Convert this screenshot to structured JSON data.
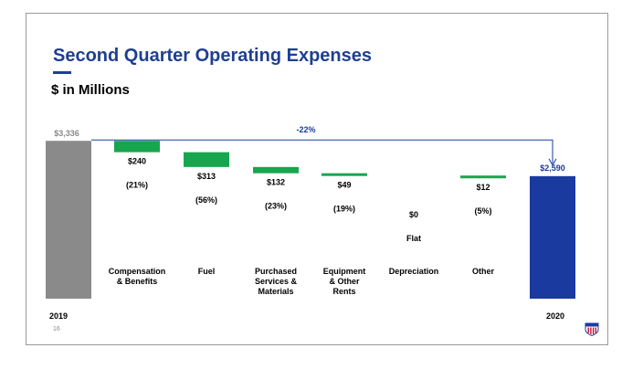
{
  "slide": {
    "title": "Second Quarter Operating Expenses",
    "subtitle": "$ in Millions",
    "page_number": "16"
  },
  "colors": {
    "title": "#1f3f91",
    "start_bar": "#8a8a8a",
    "decrease_bar": "#17a64e",
    "end_bar": "#1a3aa0",
    "connector": "#1a3aa0"
  },
  "chart_data": {
    "type": "bar",
    "subtype": "waterfall",
    "title": "Second Quarter Operating Expenses",
    "ylabel": "$ in Millions",
    "start": {
      "label": "2019",
      "value": 3336,
      "value_label": "$3,336"
    },
    "end": {
      "label": "2020",
      "value": 2590,
      "value_label": "$2,590"
    },
    "change_label": "-22%",
    "steps": [
      {
        "name": "Compensation & Benefits",
        "lines": [
          "Compensation",
          "& Benefits"
        ],
        "delta": -240,
        "value_label": "$240",
        "pct_label": "(21%)"
      },
      {
        "name": "Fuel",
        "lines": [
          "Fuel"
        ],
        "delta": -313,
        "value_label": "$313",
        "pct_label": "(56%)"
      },
      {
        "name": "Purchased Services & Materials",
        "lines": [
          "Purchased",
          "Services &",
          "Materials"
        ],
        "delta": -132,
        "value_label": "$132",
        "pct_label": "(23%)"
      },
      {
        "name": "Equipment & Other Rents",
        "lines": [
          "Equipment",
          "& Other",
          "Rents"
        ],
        "delta": -49,
        "value_label": "$49",
        "pct_label": "(19%)"
      },
      {
        "name": "Depreciation",
        "lines": [
          "Depreciation"
        ],
        "delta": 0,
        "value_label": "$0",
        "pct_label": "Flat"
      },
      {
        "name": "Other",
        "lines": [
          "Other"
        ],
        "delta": -12,
        "value_label": "$12",
        "pct_label": "(5%)"
      }
    ]
  }
}
